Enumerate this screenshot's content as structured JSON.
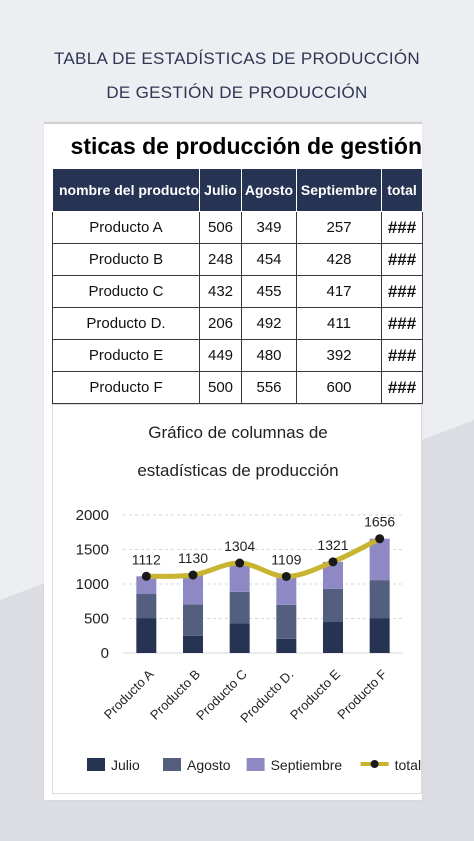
{
  "header": {
    "line1": "TABLA DE ESTADÍSTICAS DE PRODUCCIÓN",
    "line2": "DE GESTIÓN DE PRODUCCIÓN"
  },
  "sheet": {
    "title_visible": "sticas de producción de gestión"
  },
  "table": {
    "headers": [
      "nombre del producto",
      "Julio",
      "Agosto",
      "Septiembre",
      "total"
    ],
    "rows": [
      [
        "Producto A",
        "506",
        "349",
        "257",
        "###"
      ],
      [
        "Producto B",
        "248",
        "454",
        "428",
        "###"
      ],
      [
        "Producto C",
        "432",
        "455",
        "417",
        "###"
      ],
      [
        "Producto D.",
        "206",
        "492",
        "411",
        "###"
      ],
      [
        "Producto E",
        "449",
        "480",
        "392",
        "###"
      ],
      [
        "Producto F",
        "500",
        "556",
        "600",
        "###"
      ]
    ]
  },
  "colors": {
    "julio": "#273352",
    "agosto": "#545e7e",
    "septiembre": "#8e88c4",
    "total_line": "#c9b431",
    "total_marker": "#1a1a1a",
    "header_bg": "#273352"
  },
  "chart_data": {
    "type": "bar",
    "stacked": true,
    "title_lines": [
      "Gráfico de columnas de",
      "estadísticas de producción"
    ],
    "categories": [
      "Producto A",
      "Producto B",
      "Producto C",
      "Producto D.",
      "Producto E",
      "Producto F"
    ],
    "series": [
      {
        "name": "Julio",
        "values": [
          506,
          248,
          432,
          206,
          449,
          500
        ]
      },
      {
        "name": "Agosto",
        "values": [
          349,
          454,
          455,
          492,
          480,
          556
        ]
      },
      {
        "name": "Septiembre",
        "values": [
          257,
          428,
          417,
          411,
          392,
          600
        ]
      }
    ],
    "line_series": {
      "name": "total",
      "values": [
        1112,
        1130,
        1304,
        1109,
        1321,
        1656
      ]
    },
    "yticks": [
      "0",
      "500",
      "1000",
      "1500",
      "2000"
    ],
    "ylim": [
      0,
      2000
    ],
    "grid": true,
    "legend_position": "bottom"
  }
}
